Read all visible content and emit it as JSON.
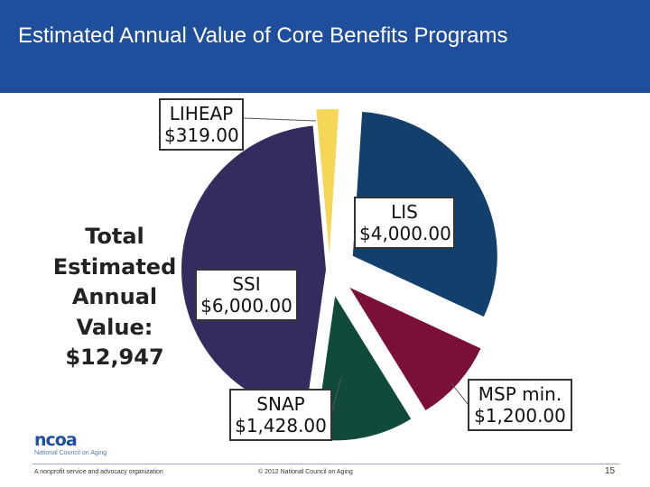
{
  "header": {
    "title": "Estimated Annual Value of Core Benefits Programs"
  },
  "total": {
    "lines": [
      "Total",
      "Estimated",
      "Annual",
      "Value:",
      "$12,947"
    ]
  },
  "chart_data": {
    "type": "pie",
    "title": "Estimated Annual Value of Core Benefits Programs",
    "slices": [
      {
        "label": "LIHEAP",
        "value_label": "$319.00",
        "value": 319,
        "color": "#f5d657"
      },
      {
        "label": "LIS",
        "value_label": "$4,000.00",
        "value": 4000,
        "color": "#123f6b"
      },
      {
        "label": "MSP min.",
        "value_label": "$1,200.00",
        "value": 1200,
        "color": "#7a0f3a"
      },
      {
        "label": "SNAP",
        "value_label": "$1,428.00",
        "value": 1428,
        "color": "#0f4a3a"
      },
      {
        "label": "SSI",
        "value_label": "$6,000.00",
        "value": 6000,
        "color": "#342b5e"
      }
    ]
  },
  "footer": {
    "logo_word": "ncoa",
    "logo_sub": "National Council on Aging",
    "left_text": "A nonprofit service and advocacy organization",
    "center_text": "© 2012 National Council on Aging",
    "page_number": "15"
  }
}
